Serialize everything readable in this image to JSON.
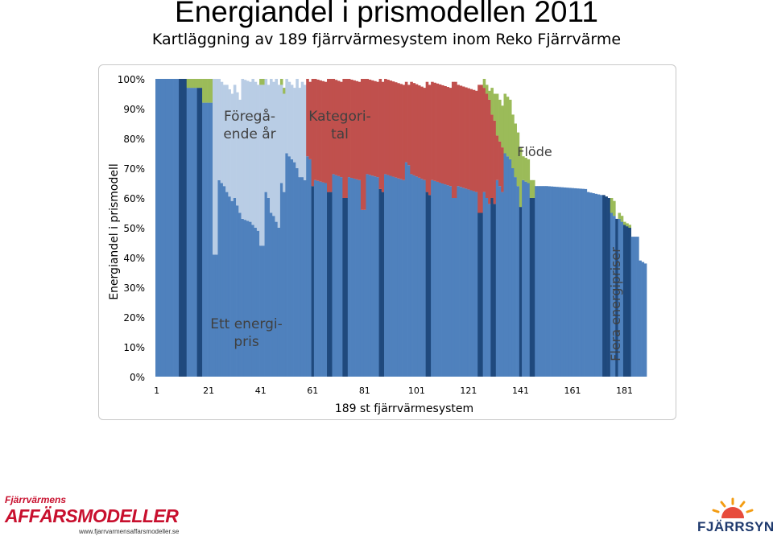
{
  "header": {
    "title": "Energiandel i prismodellen 2011",
    "subtitle": "Kartläggning av 189 fjärrvärmesystem inom Reko Fjärrvärme"
  },
  "chart_data": {
    "type": "bar",
    "stacked": true,
    "xlabel": "189 st fjärrvärmesystem",
    "ylabel": "Energiandel i prismodell",
    "ylim": [
      0,
      100
    ],
    "y_ticks": [
      "0%",
      "10%",
      "20%",
      "30%",
      "40%",
      "50%",
      "60%",
      "70%",
      "80%",
      "90%",
      "100%"
    ],
    "x_ticks": [
      "1",
      "21",
      "41",
      "61",
      "81",
      "101",
      "121",
      "141",
      "161",
      "181"
    ],
    "grid": false,
    "legend": "none",
    "annotations": [
      {
        "text_lines": [
          "Föregå-",
          "ende år"
        ],
        "color": "#404040"
      },
      {
        "text_lines": [
          "Kategori-",
          "tal"
        ],
        "color": "#404040"
      },
      {
        "text_lines": [
          "Flöde"
        ],
        "color": "#404040"
      },
      {
        "text_lines": [
          "Ett energi-",
          "pris"
        ],
        "color": "#404040"
      },
      {
        "text_lines": [
          "Flera energipriser"
        ],
        "color": "#404040",
        "rotated": true
      }
    ],
    "n_bars": 189,
    "series": [
      {
        "key": "energy",
        "color": "#4f81bd",
        "dark_color": "#1f497d"
      },
      {
        "key": "prev",
        "color": "#b9cde5"
      },
      {
        "key": "kat",
        "color": "#c0504d"
      },
      {
        "key": "flow",
        "color": "#9bbb59"
      }
    ],
    "segments": [
      {
        "from": 1,
        "to": 9,
        "energy": [
          100,
          100
        ],
        "prev": 0,
        "kat": 0,
        "flow": 0
      },
      {
        "from": 10,
        "to": 12,
        "energy": [
          100,
          100
        ],
        "prev": 0,
        "kat": 0,
        "flow": 0,
        "dark": true
      },
      {
        "from": 13,
        "to": 16,
        "energy": [
          97,
          97
        ],
        "prev": 0,
        "kat": 0,
        "flow": 3
      },
      {
        "from": 17,
        "to": 18,
        "energy": [
          97,
          97
        ],
        "prev": 0,
        "kat": 0,
        "flow": 3,
        "dark": true
      },
      {
        "from": 19,
        "to": 22,
        "energy": [
          92,
          92
        ],
        "prev": 0,
        "kat": 0,
        "flow": 8
      },
      {
        "from": 23,
        "to": 24,
        "energy": [
          41,
          41
        ],
        "prev": 59,
        "kat": 0,
        "flow": 0
      },
      {
        "from": 25,
        "to": 27,
        "energy": [
          66,
          64
        ],
        "prev": 34,
        "kat": 0,
        "flow": 0
      },
      {
        "from": 28,
        "to": 30,
        "energy": [
          62,
          59
        ],
        "prev": 36,
        "kat": 0,
        "flow": 0
      },
      {
        "from": 31,
        "to": 33,
        "energy": [
          60,
          55
        ],
        "prev": 38,
        "kat": 0,
        "flow": 0
      },
      {
        "from": 34,
        "to": 37,
        "energy": [
          53,
          52
        ],
        "prev": 47,
        "kat": 0,
        "flow": 0
      },
      {
        "from": 38,
        "to": 40,
        "energy": [
          51,
          49
        ],
        "prev": 49,
        "kat": 0,
        "flow": 0
      },
      {
        "from": 41,
        "to": 42,
        "energy": [
          44,
          44
        ],
        "prev": 54,
        "kat": 0,
        "flow": 2
      },
      {
        "from": 43,
        "to": 44,
        "energy": [
          62,
          60
        ],
        "prev": 38,
        "kat": 0,
        "flow": 0
      },
      {
        "from": 45,
        "to": 46,
        "energy": [
          55,
          54
        ],
        "prev": 45,
        "kat": 0,
        "flow": 0
      },
      {
        "from": 47,
        "to": 48,
        "energy": [
          52,
          50
        ],
        "prev": 48,
        "kat": 0,
        "flow": 0
      },
      {
        "from": 49,
        "to": 50,
        "energy": [
          65,
          62
        ],
        "prev": 33,
        "kat": 0,
        "flow": 2
      },
      {
        "from": 51,
        "to": 54,
        "energy": [
          75,
          72
        ],
        "prev": 25,
        "kat": 0,
        "flow": 0
      },
      {
        "from": 55,
        "to": 56,
        "energy": [
          70,
          67
        ],
        "prev": 30,
        "kat": 0,
        "flow": 0
      },
      {
        "from": 57,
        "to": 58,
        "energy": [
          67,
          66
        ],
        "prev": 32,
        "kat": 0,
        "flow": 0
      },
      {
        "from": 59,
        "to": 60,
        "energy": [
          74,
          73
        ],
        "prev": 0,
        "kat": 26,
        "flow": 0
      },
      {
        "from": 61,
        "to": 61,
        "energy": [
          64,
          64
        ],
        "prev": 0,
        "kat": 36,
        "flow": 0,
        "dark": true
      },
      {
        "from": 62,
        "to": 66,
        "energy": [
          66,
          65
        ],
        "prev": 0,
        "kat": 34,
        "flow": 0
      },
      {
        "from": 67,
        "to": 68,
        "energy": [
          62,
          62
        ],
        "prev": 0,
        "kat": 38,
        "flow": 0,
        "dark": true
      },
      {
        "from": 69,
        "to": 72,
        "energy": [
          68,
          67
        ],
        "prev": 0,
        "kat": 32,
        "flow": 0
      },
      {
        "from": 73,
        "to": 74,
        "energy": [
          60,
          60
        ],
        "prev": 0,
        "kat": 40,
        "flow": 0,
        "dark": true
      },
      {
        "from": 75,
        "to": 79,
        "energy": [
          67,
          66
        ],
        "prev": 0,
        "kat": 33,
        "flow": 0
      },
      {
        "from": 80,
        "to": 81,
        "energy": [
          56,
          56
        ],
        "prev": 0,
        "kat": 44,
        "flow": 0
      },
      {
        "from": 82,
        "to": 86,
        "energy": [
          68,
          67
        ],
        "prev": 0,
        "kat": 32,
        "flow": 0
      },
      {
        "from": 87,
        "to": 88,
        "energy": [
          63,
          62
        ],
        "prev": 0,
        "kat": 37,
        "flow": 0,
        "dark": true
      },
      {
        "from": 89,
        "to": 96,
        "energy": [
          68,
          66
        ],
        "prev": 0,
        "kat": 32,
        "flow": 0
      },
      {
        "from": 97,
        "to": 98,
        "energy": [
          72,
          71
        ],
        "prev": 0,
        "kat": 27,
        "flow": 0
      },
      {
        "from": 99,
        "to": 104,
        "energy": [
          68,
          66
        ],
        "prev": 0,
        "kat": 31,
        "flow": 0
      },
      {
        "from": 105,
        "to": 106,
        "energy": [
          62,
          61
        ],
        "prev": 0,
        "kat": 37,
        "flow": 0,
        "dark": true
      },
      {
        "from": 107,
        "to": 114,
        "energy": [
          66,
          64
        ],
        "prev": 0,
        "kat": 33,
        "flow": 0
      },
      {
        "from": 115,
        "to": 116,
        "energy": [
          60,
          60
        ],
        "prev": 0,
        "kat": 39,
        "flow": 0
      },
      {
        "from": 117,
        "to": 124,
        "energy": [
          64,
          62
        ],
        "prev": 0,
        "kat": 34,
        "flow": 0
      },
      {
        "from": 125,
        "to": 126,
        "energy": [
          55,
          55
        ],
        "prev": 0,
        "kat": 43,
        "flow": 0,
        "dark": true
      },
      {
        "from": 127,
        "to": 129,
        "energy": [
          62,
          58
        ],
        "prev": 0,
        "kat": 35,
        "flow": 3
      },
      {
        "from": 130,
        "to": 131,
        "energy": [
          60,
          58
        ],
        "prev": 0,
        "kat": 28,
        "flow": 9,
        "dark": true
      },
      {
        "from": 132,
        "to": 134,
        "energy": [
          66,
          62
        ],
        "prev": 0,
        "kat": 15,
        "flow": 14
      },
      {
        "from": 135,
        "to": 137,
        "energy": [
          75,
          73
        ],
        "prev": 0,
        "kat": 0,
        "flow": 20
      },
      {
        "from": 138,
        "to": 140,
        "energy": [
          70,
          64
        ],
        "prev": 0,
        "kat": 0,
        "flow": 18
      },
      {
        "from": 141,
        "to": 141,
        "energy": [
          57,
          57
        ],
        "prev": 0,
        "kat": 0,
        "flow": 20,
        "dark": true
      },
      {
        "from": 142,
        "to": 144,
        "energy": [
          66,
          65
        ],
        "prev": 0,
        "kat": 0,
        "flow": 8
      },
      {
        "from": 145,
        "to": 146,
        "energy": [
          60,
          60
        ],
        "prev": 0,
        "kat": 0,
        "flow": 6,
        "dark": true
      },
      {
        "from": 147,
        "to": 150,
        "energy": [
          64,
          64
        ],
        "prev": 0,
        "kat": 0,
        "flow": 0
      },
      {
        "from": 151,
        "to": 166,
        "energy": [
          64,
          63
        ],
        "prev": 0,
        "kat": 0,
        "flow": 0
      },
      {
        "from": 167,
        "to": 172,
        "energy": [
          62,
          61
        ],
        "prev": 0,
        "kat": 0,
        "flow": 0
      },
      {
        "from": 173,
        "to": 175,
        "energy": [
          61,
          60
        ],
        "prev": 0,
        "kat": 0,
        "flow": 0,
        "dark": true
      },
      {
        "from": 176,
        "to": 177,
        "energy": [
          55,
          54
        ],
        "prev": 0,
        "kat": 0,
        "flow": 5
      },
      {
        "from": 178,
        "to": 178,
        "energy": [
          53,
          53
        ],
        "prev": 0,
        "kat": 0,
        "flow": 0,
        "dark": true
      },
      {
        "from": 179,
        "to": 180,
        "energy": [
          53,
          52
        ],
        "prev": 0,
        "kat": 0,
        "flow": 2
      },
      {
        "from": 181,
        "to": 183,
        "energy": [
          51,
          50
        ],
        "prev": 0,
        "kat": 0,
        "flow": 1,
        "dark": true
      },
      {
        "from": 184,
        "to": 186,
        "energy": [
          47,
          47
        ],
        "prev": 0,
        "kat": 0,
        "flow": 0
      },
      {
        "from": 187,
        "to": 189,
        "energy": [
          39,
          38
        ],
        "prev": 0,
        "kat": 0,
        "flow": 0
      }
    ]
  },
  "logos": {
    "left_line1": "Fjärrvärmens",
    "left_line2": "AFFÄRSMODELLER",
    "left_url": "www.fjarrvarmensaffarsmodeller.se",
    "right_brand": "FJÄRRSYN"
  }
}
